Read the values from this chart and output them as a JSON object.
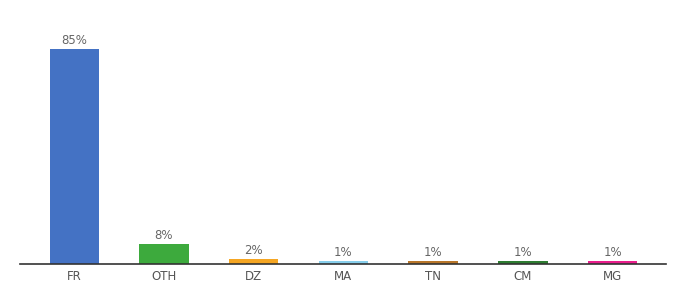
{
  "categories": [
    "FR",
    "OTH",
    "DZ",
    "MA",
    "TN",
    "CM",
    "MG"
  ],
  "values": [
    85,
    8,
    2,
    1,
    1,
    1,
    1
  ],
  "bar_colors": [
    "#4472C4",
    "#3DAA3D",
    "#F5A623",
    "#87CEEB",
    "#B8762A",
    "#2E7D32",
    "#E91E8C"
  ],
  "label_fontsize": 8.5,
  "tick_fontsize": 8.5,
  "ylim": [
    0,
    95
  ],
  "background_color": "#ffffff",
  "bar_width": 0.55
}
